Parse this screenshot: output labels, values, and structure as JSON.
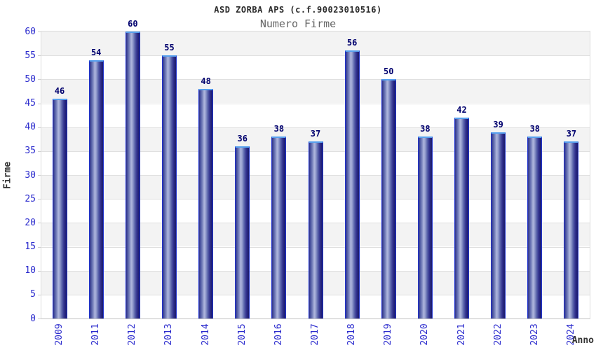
{
  "chart_data": {
    "type": "bar",
    "title": "ASD ZORBA APS (c.f.90023010516)",
    "subtitle": "Numero Firme",
    "categories": [
      "2009",
      "2011",
      "2012",
      "2013",
      "2014",
      "2015",
      "2016",
      "2017",
      "2018",
      "2019",
      "2020",
      "2021",
      "2022",
      "2023",
      "2024"
    ],
    "values": [
      46,
      54,
      60,
      55,
      48,
      36,
      38,
      37,
      56,
      50,
      38,
      42,
      39,
      38,
      37
    ],
    "xlabel": "Anno",
    "ylabel": "Firme",
    "ylim": [
      0,
      60
    ],
    "y_ticks": [
      0,
      5,
      10,
      15,
      20,
      25,
      30,
      35,
      40,
      45,
      50,
      55,
      60
    ],
    "grid": "alternating horizontal bands every 5 units, gray band at top (55-60)",
    "legend": "none"
  },
  "colors": {
    "axis_label_blue": "#2a2acd",
    "value_label_navy": "#00006e",
    "title_color": "#2b2b2b",
    "subtitle_color": "#666666",
    "band_gray": "#f3f3f3",
    "gridline": "#e0e0e0",
    "plot_border": "#dcdcdc",
    "bar_outline_blue": "#2134cc",
    "bar_top_highlight": "#57a0ee",
    "bar_dark_navy": "#1b1b6e",
    "bar_light_center": "#aeb6dd"
  }
}
